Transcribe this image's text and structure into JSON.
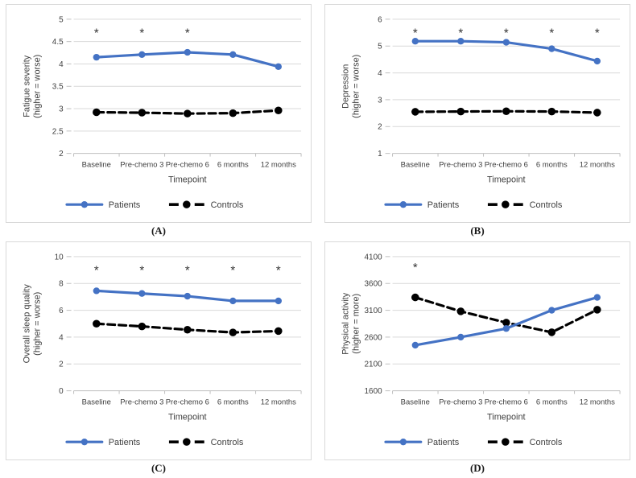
{
  "colors": {
    "patients": "#4472C4",
    "controls": "#000000",
    "grid": "#d9d9d9",
    "axis": "#bfbfbf",
    "text": "#404040",
    "asterisk": "#333333"
  },
  "chart_data": [
    {
      "type": "line",
      "panel_label": "(A)",
      "ylabel": [
        "Fatigue severity",
        "(higher = worse)"
      ],
      "xlabel": "Timepoint",
      "categories": [
        "Baseline",
        "Pre-chemo 3",
        "Pre-chemo 6",
        "6 months",
        "12 months"
      ],
      "ylim": [
        2,
        5
      ],
      "yticks": [
        2,
        2.5,
        3,
        3.5,
        4,
        4.5,
        5
      ],
      "ytick_labels": [
        "2",
        "2.5",
        "3",
        "3.5",
        "4",
        "4.5",
        "5"
      ],
      "grid": true,
      "legend_position": "bottom",
      "series": [
        {
          "name": "Patients",
          "style": "solid",
          "color_key": "patients",
          "values": [
            4.15,
            4.21,
            4.26,
            4.21,
            3.94
          ]
        },
        {
          "name": "Controls",
          "style": "dashed",
          "color_key": "controls",
          "values": [
            2.92,
            2.91,
            2.89,
            2.9,
            2.96
          ]
        }
      ],
      "significance": {
        "symbol": "*",
        "y": 4.7,
        "indices": [
          0,
          1,
          2
        ]
      }
    },
    {
      "type": "line",
      "panel_label": "(B)",
      "ylabel": [
        "Depression",
        "(higher = worse)"
      ],
      "xlabel": "Timepoint",
      "categories": [
        "Baseline",
        "Pre-chemo 3",
        "Pre-chemo 6",
        "6 months",
        "12 months"
      ],
      "ylim": [
        1,
        6
      ],
      "yticks": [
        1,
        2,
        3,
        4,
        5,
        6
      ],
      "ytick_labels": [
        "1",
        "2",
        "3",
        "4",
        "5",
        "6"
      ],
      "grid": true,
      "legend_position": "bottom",
      "series": [
        {
          "name": "Patients",
          "style": "solid",
          "color_key": "patients",
          "values": [
            5.18,
            5.18,
            5.14,
            4.9,
            4.44
          ]
        },
        {
          "name": "Controls",
          "style": "dashed",
          "color_key": "controls",
          "values": [
            2.55,
            2.56,
            2.57,
            2.56,
            2.52
          ]
        }
      ],
      "significance": {
        "symbol": "*",
        "y": 5.5,
        "indices": [
          0,
          1,
          2,
          3,
          4
        ]
      }
    },
    {
      "type": "line",
      "panel_label": "(C)",
      "ylabel": [
        "Overall sleep quality",
        "(higher = worse)"
      ],
      "xlabel": "Timepoint",
      "categories": [
        "Baseline",
        "Pre-chemo 3",
        "Pre-chemo 6",
        "6 months",
        "12 months"
      ],
      "ylim": [
        0,
        10
      ],
      "yticks": [
        0,
        2,
        4,
        6,
        8,
        10
      ],
      "ytick_labels": [
        "0",
        "2",
        "4",
        "6",
        "8",
        "10"
      ],
      "grid": true,
      "legend_position": "bottom",
      "series": [
        {
          "name": "Patients",
          "style": "solid",
          "color_key": "patients",
          "values": [
            7.45,
            7.25,
            7.05,
            6.7,
            6.7
          ]
        },
        {
          "name": "Controls",
          "style": "dashed",
          "color_key": "controls",
          "values": [
            5.0,
            4.8,
            4.55,
            4.35,
            4.45
          ]
        }
      ],
      "significance": {
        "symbol": "*",
        "y": 9.0,
        "indices": [
          0,
          1,
          2,
          3,
          4
        ]
      }
    },
    {
      "type": "line",
      "panel_label": "(D)",
      "ylabel": [
        "Physical activity",
        "(higher = more)"
      ],
      "xlabel": "Timepoint",
      "categories": [
        "Baseline",
        "Pre-chemo 3",
        "Pre-chemo 6",
        "6 months",
        "12 months"
      ],
      "ylim": [
        1600,
        4100
      ],
      "yticks": [
        1600,
        2100,
        2600,
        3100,
        3600,
        4100
      ],
      "ytick_labels": [
        "1600",
        "2100",
        "2600",
        "3100",
        "3600",
        "4100"
      ],
      "grid": true,
      "legend_position": "bottom",
      "series": [
        {
          "name": "Patients",
          "style": "solid",
          "color_key": "patients",
          "values": [
            2450,
            2600,
            2760,
            3100,
            3340
          ]
        },
        {
          "name": "Controls",
          "style": "dashed",
          "color_key": "controls",
          "values": [
            3340,
            3080,
            2870,
            2690,
            3110
          ]
        }
      ],
      "significance": {
        "symbol": "*",
        "y": 3900,
        "indices": [
          0
        ]
      }
    }
  ]
}
